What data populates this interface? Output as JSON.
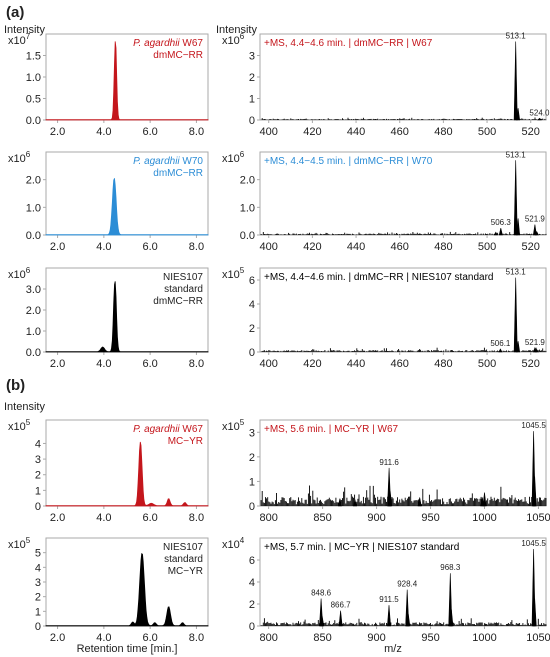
{
  "figure": {
    "section_labels": [
      "(a)",
      "(b)"
    ],
    "intensity_label": "Intensity",
    "x_axis_label_left": "Retention time [min.]",
    "x_axis_label_right": "m/z"
  },
  "colors": {
    "red": "#c4161c",
    "blue": "#2c8dd6",
    "black": "#000000",
    "axis": "#aaaaaa",
    "text": "#222222"
  },
  "chart_data": [
    {
      "id": "a1-chrom",
      "type": "area",
      "color": "red",
      "multiplier": "x10",
      "exponent": "7",
      "annotation": [
        {
          "text": "P. agardhii",
          "italic": true,
          "rest": " W67"
        },
        {
          "text": "dmMC−RR"
        }
      ],
      "xlim": [
        1.5,
        8.5
      ],
      "ylim": [
        0,
        2.0
      ],
      "xticks": [
        2.0,
        4.0,
        6.0,
        8.0
      ],
      "xtick_labels": [
        "2.0",
        "4.0",
        "6.0",
        "8.0"
      ],
      "yticks": [
        0.0,
        0.5,
        1.0,
        1.5
      ],
      "ytick_labels": [
        "0.0",
        "0.5",
        "1.0",
        "1.5"
      ],
      "peaks": [
        {
          "x": 4.5,
          "y": 1.85,
          "w": 0.05
        }
      ]
    },
    {
      "id": "a1-ms",
      "type": "bar",
      "color": "black",
      "multiplier": "x10",
      "exponent": "6",
      "title": "+MS, 4.4−4.6 min. | dmMC−RR | W67",
      "title_color": "red",
      "xlim": [
        396,
        527
      ],
      "ylim": [
        0,
        4.0
      ],
      "xticks": [
        400,
        420,
        440,
        460,
        480,
        500,
        520
      ],
      "xtick_labels": [
        "400",
        "420",
        "440",
        "460",
        "480",
        "500",
        "520"
      ],
      "yticks": [
        0,
        1,
        2,
        3
      ],
      "ytick_labels": [
        "0",
        "1",
        "2",
        "3"
      ],
      "noise": 0.05,
      "peaks": [
        {
          "x": 513.1,
          "y": 3.65,
          "label": "513.1"
        },
        {
          "x": 514.2,
          "y": 0.55
        },
        {
          "x": 524.0,
          "y": 0.08,
          "label": "524.0"
        }
      ]
    },
    {
      "id": "a2-chrom",
      "type": "area",
      "color": "blue",
      "multiplier": "x10",
      "exponent": "6",
      "annotation": [
        {
          "text": "P. agardhii",
          "italic": true,
          "rest": " W70"
        },
        {
          "text": "dmMC−RR"
        }
      ],
      "xlim": [
        1.5,
        8.5
      ],
      "ylim": [
        0,
        3.0
      ],
      "xticks": [
        2.0,
        4.0,
        6.0,
        8.0
      ],
      "xtick_labels": [
        "2.0",
        "4.0",
        "6.0",
        "8.0"
      ],
      "yticks": [
        0.0,
        1.0,
        2.0
      ],
      "ytick_labels": [
        "0.0",
        "1.0",
        "2.0"
      ],
      "peaks": [
        {
          "x": 4.45,
          "y": 2.05,
          "w": 0.08
        }
      ]
    },
    {
      "id": "a2-ms",
      "type": "bar",
      "color": "black",
      "multiplier": "x10",
      "exponent": "6",
      "title": "+MS, 4.4−4.5 min. | dmMC−RR | W70",
      "title_color": "blue",
      "xlim": [
        396,
        527
      ],
      "ylim": [
        0,
        3.0
      ],
      "xticks": [
        400,
        420,
        440,
        460,
        480,
        500,
        520
      ],
      "xtick_labels": [
        "400",
        "420",
        "440",
        "460",
        "480",
        "500",
        "520"
      ],
      "yticks": [
        0.0,
        1.0,
        2.0
      ],
      "ytick_labels": [
        "0.0",
        "1.0",
        "2.0"
      ],
      "noise": 0.05,
      "peaks": [
        {
          "x": 513.1,
          "y": 2.7,
          "label": "513.1"
        },
        {
          "x": 514.2,
          "y": 0.6
        },
        {
          "x": 506.3,
          "y": 0.25,
          "label": "506.3"
        },
        {
          "x": 504.0,
          "y": 0.1
        },
        {
          "x": 521.9,
          "y": 0.38,
          "label": "521.9"
        },
        {
          "x": 522.8,
          "y": 0.12
        }
      ]
    },
    {
      "id": "a3-chrom",
      "type": "area",
      "color": "black",
      "multiplier": "x10",
      "exponent": "6",
      "annotation": [
        {
          "text": "NIES107"
        },
        {
          "text": "standard"
        },
        {
          "text": "dmMC−RR"
        }
      ],
      "xlim": [
        1.5,
        8.5
      ],
      "ylim": [
        0,
        4.0
      ],
      "xticks": [
        2.0,
        4.0,
        6.0,
        8.0
      ],
      "xtick_labels": [
        "2.0",
        "4.0",
        "6.0",
        "8.0"
      ],
      "yticks": [
        0.0,
        1.0,
        2.0,
        3.0
      ],
      "ytick_labels": [
        "0.0",
        "1.0",
        "2.0",
        "3.0"
      ],
      "peaks": [
        {
          "x": 4.48,
          "y": 3.4,
          "w": 0.06
        },
        {
          "x": 3.95,
          "y": 0.22,
          "w": 0.08
        }
      ]
    },
    {
      "id": "a3-ms",
      "type": "bar",
      "color": "black",
      "multiplier": "x10",
      "exponent": "5",
      "title": "+MS, 4.4−4.6 min. | dmMC−RR | NIES107 standard",
      "title_color": "black",
      "xlim": [
        396,
        527
      ],
      "ylim": [
        0,
        7.0
      ],
      "xticks": [
        400,
        420,
        440,
        460,
        480,
        500,
        520
      ],
      "xtick_labels": [
        "400",
        "420",
        "440",
        "460",
        "480",
        "500",
        "520"
      ],
      "yticks": [
        0,
        2,
        4,
        6
      ],
      "ytick_labels": [
        "0",
        "2",
        "4",
        "6"
      ],
      "noise": 0.15,
      "peaks": [
        {
          "x": 513.1,
          "y": 6.2,
          "label": "513.1"
        },
        {
          "x": 514.2,
          "y": 0.9
        },
        {
          "x": 506.1,
          "y": 0.25,
          "label": "506.1"
        },
        {
          "x": 521.9,
          "y": 0.35,
          "label": "521.9"
        },
        {
          "x": 522.8,
          "y": 0.2
        }
      ]
    },
    {
      "id": "b1-chrom",
      "type": "area",
      "color": "red",
      "multiplier": "x10",
      "exponent": "5",
      "annotation": [
        {
          "text": "P. agardhii",
          "italic": true,
          "rest": " W67"
        },
        {
          "text": "MC−YR"
        }
      ],
      "xlim": [
        1.5,
        8.5
      ],
      "ylim": [
        0,
        5.5
      ],
      "xticks": [
        2.0,
        4.0,
        6.0,
        8.0
      ],
      "xtick_labels": [
        "2.0",
        "4.0",
        "6.0",
        "8.0"
      ],
      "yticks": [
        0,
        1,
        2,
        3,
        4
      ],
      "ytick_labels": [
        "0",
        "1",
        "2",
        "3",
        "4"
      ],
      "peaks": [
        {
          "x": 5.58,
          "y": 4.1,
          "w": 0.07
        },
        {
          "x": 6.8,
          "y": 0.45,
          "w": 0.06
        },
        {
          "x": 6.05,
          "y": 0.15,
          "w": 0.1
        },
        {
          "x": 7.5,
          "y": 0.2,
          "w": 0.06
        }
      ]
    },
    {
      "id": "b1-ms",
      "type": "bar",
      "color": "black",
      "multiplier": "x10",
      "exponent": "5",
      "title": "+MS, 5.6 min. | MC−YR | W67",
      "title_color": "red",
      "xlim": [
        792,
        1057
      ],
      "ylim": [
        0,
        3.5
      ],
      "xticks": [
        800,
        850,
        900,
        950,
        1000,
        1050
      ],
      "xtick_labels": [
        "800",
        "850",
        "900",
        "950",
        "1000",
        "1050"
      ],
      "yticks": [
        0,
        1,
        2,
        3
      ],
      "ytick_labels": [
        "0",
        "1",
        "2",
        "3"
      ],
      "noise": 0.35,
      "peaks": [
        {
          "x": 1045.5,
          "y": 3.05,
          "label": "1045.5"
        },
        {
          "x": 1046.5,
          "y": 1.2
        },
        {
          "x": 911.6,
          "y": 1.55,
          "label": "911.6"
        },
        {
          "x": 912.6,
          "y": 0.6
        },
        {
          "x": 1000,
          "y": 0.55
        },
        {
          "x": 998,
          "y": 0.35
        },
        {
          "x": 866,
          "y": 0.3
        },
        {
          "x": 880,
          "y": 0.25
        },
        {
          "x": 940,
          "y": 0.35
        }
      ]
    },
    {
      "id": "b2-chrom",
      "type": "area",
      "color": "black",
      "multiplier": "x10",
      "exponent": "5",
      "annotation": [
        {
          "text": "NIES107"
        },
        {
          "text": "standard"
        },
        {
          "text": "MC−YR"
        }
      ],
      "xlim": [
        1.5,
        8.5
      ],
      "ylim": [
        0,
        6.0
      ],
      "xticks": [
        2.0,
        4.0,
        6.0,
        8.0
      ],
      "xtick_labels": [
        "2.0",
        "4.0",
        "6.0",
        "8.0"
      ],
      "yticks": [
        0,
        1,
        2,
        3,
        4,
        5
      ],
      "ytick_labels": [
        "0",
        "1",
        "2",
        "3",
        "4",
        "5"
      ],
      "peaks": [
        {
          "x": 5.65,
          "y": 4.95,
          "w": 0.1
        },
        {
          "x": 6.8,
          "y": 1.3,
          "w": 0.08
        },
        {
          "x": 5.25,
          "y": 0.25,
          "w": 0.06
        },
        {
          "x": 6.2,
          "y": 0.2,
          "w": 0.06
        },
        {
          "x": 7.4,
          "y": 0.2,
          "w": 0.06
        }
      ]
    },
    {
      "id": "b2-ms",
      "type": "bar",
      "color": "black",
      "multiplier": "x10",
      "exponent": "4",
      "title": "+MS, 5.7 min. | MC−YR | NIES107 standard",
      "title_color": "black",
      "xlim": [
        792,
        1057
      ],
      "ylim": [
        0,
        8.0
      ],
      "xticks": [
        800,
        850,
        900,
        950,
        1000,
        1050
      ],
      "xtick_labels": [
        "800",
        "850",
        "900",
        "950",
        "1000",
        "1050"
      ],
      "yticks": [
        0,
        2,
        4,
        6
      ],
      "ytick_labels": [
        "0",
        "2",
        "4",
        "6"
      ],
      "noise": 0.3,
      "peaks": [
        {
          "x": 1045.5,
          "y": 7.0,
          "label": "1045.5"
        },
        {
          "x": 1046.5,
          "y": 2.5
        },
        {
          "x": 968.3,
          "y": 4.8,
          "label": "968.3"
        },
        {
          "x": 969.3,
          "y": 1.5
        },
        {
          "x": 928.4,
          "y": 3.3,
          "label": "928.4"
        },
        {
          "x": 929.4,
          "y": 1.1
        },
        {
          "x": 911.5,
          "y": 1.9,
          "label": "911.5"
        },
        {
          "x": 848.6,
          "y": 2.5,
          "label": "848.6"
        },
        {
          "x": 849.6,
          "y": 0.9
        },
        {
          "x": 866.7,
          "y": 1.4,
          "label": "866.7"
        }
      ]
    }
  ]
}
